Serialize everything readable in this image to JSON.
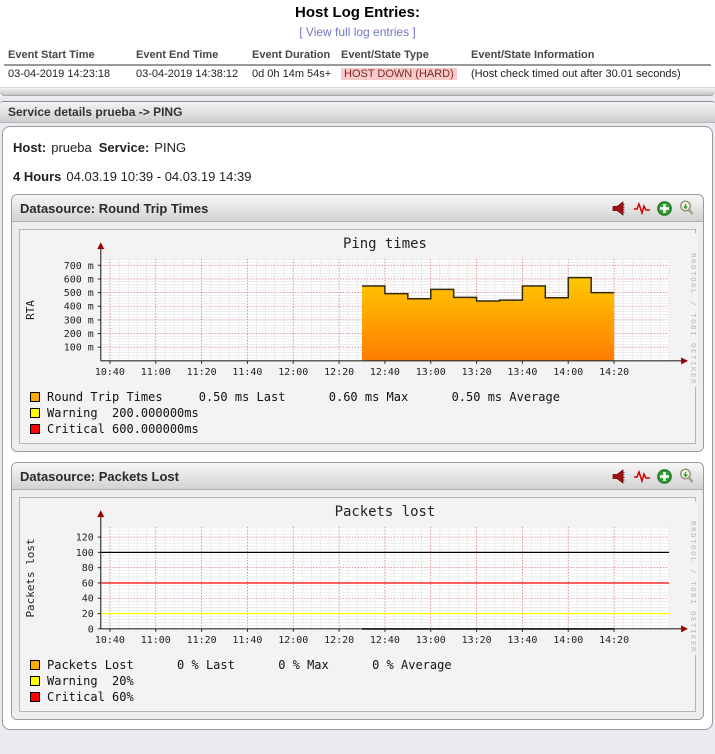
{
  "header": {
    "title": "Host Log Entries:",
    "link_label": "[ View full log entries ]"
  },
  "log_table": {
    "headers": [
      "Event Start Time",
      "Event End Time",
      "Event Duration",
      "Event/State Type",
      "Event/State Information"
    ],
    "row": {
      "start_time": "03-04-2019 14:23:18",
      "end_time": "03-04-2019 14:38:12",
      "duration": "0d 0h 14m 54s+",
      "state_type": "HOST DOWN (HARD)",
      "state_info": "(Host check timed out after 30.01 seconds)"
    }
  },
  "breadcrumb": {
    "text": "Service details prueba -> PING"
  },
  "service_details": {
    "host_label": "Host:",
    "host_value": "prueba",
    "service_label": "Service:",
    "service_value": "PING"
  },
  "time_range": {
    "label": "4 Hours",
    "value": "04.03.19 10:39 - 04.03.19 14:39"
  },
  "panels": [
    {
      "title": "Datasource: Round Trip Times",
      "icons": [
        "megaphone-icon",
        "heartbeat-icon",
        "zoom-in-plus-icon",
        "magnifier-icon"
      ]
    },
    {
      "title": "Datasource: Packets Lost",
      "icons": [
        "megaphone-icon",
        "heartbeat-icon",
        "zoom-in-plus-icon",
        "magnifier-icon"
      ]
    }
  ],
  "colors": {
    "link": "#7277c2",
    "state_down_bg": "#f8c9c9",
    "state_down_text": "#7a2a2a",
    "area_top": "#ffc800",
    "area_bottom": "#ff7d00",
    "warning": "#ffff00",
    "critical": "#ff0000"
  },
  "chart_data": [
    {
      "type": "area",
      "title": "Ping times",
      "ylabel": "RTA",
      "watermark": "RRDTOOL / TOBI OETIKER",
      "x_domain": [
        "10:36",
        "14:44"
      ],
      "x_ticks": [
        "10:40",
        "11:00",
        "11:20",
        "11:40",
        "12:00",
        "12:20",
        "12:40",
        "13:00",
        "13:20",
        "13:40",
        "14:00",
        "14:20"
      ],
      "x_minor_minutes": 4,
      "y_ticks": [
        {
          "v": 100,
          "label": "100 m"
        },
        {
          "v": 200,
          "label": "200 m"
        },
        {
          "v": 300,
          "label": "300 m"
        },
        {
          "v": 400,
          "label": "400 m"
        },
        {
          "v": 500,
          "label": "500 m"
        },
        {
          "v": 600,
          "label": "600 m"
        },
        {
          "v": 700,
          "label": "700 m"
        }
      ],
      "y_minor": 20,
      "ylim": [
        0,
        745
      ],
      "grid": true,
      "series": [
        {
          "name": "Round Trip Times",
          "style": "gradient-area-step",
          "color_top": "#ffc800",
          "color_bottom": "#ff7d00",
          "outline": "#32280a",
          "unit": "ms (milli)",
          "steps": [
            [
              "12:30",
              548
            ],
            [
              "12:40",
              492
            ],
            [
              "12:50",
              455
            ],
            [
              "13:00",
              524
            ],
            [
              "13:10",
              465
            ],
            [
              "13:20",
              438
            ],
            [
              "13:30",
              445
            ],
            [
              "13:40",
              548
            ],
            [
              "13:50",
              462
            ],
            [
              "14:00",
              610
            ],
            [
              "14:10",
              500
            ]
          ],
          "end": "14:20",
          "last": "0.50 ms",
          "max": "0.60 ms",
          "average": "0.50 ms"
        }
      ],
      "rules": [],
      "warning_threshold": "200.000000ms",
      "critical_threshold": "600.000000ms",
      "legend": [
        {
          "color": "#fca902",
          "text": "Round Trip Times     0.50 ms Last      0.60 ms Max      0.50 ms Average"
        },
        {
          "color": "#ffff00",
          "text": "Warning  200.000000ms"
        },
        {
          "color": "#ff0000",
          "text": "Critical 600.000000ms"
        }
      ]
    },
    {
      "type": "line",
      "title": "Packets lost",
      "ylabel": "Packets lost",
      "watermark": "RRDTOOL / TOBI OETIKER",
      "x_domain": [
        "10:36",
        "14:44"
      ],
      "x_ticks": [
        "10:40",
        "11:00",
        "11:20",
        "11:40",
        "12:00",
        "12:20",
        "12:40",
        "13:00",
        "13:20",
        "13:40",
        "14:00",
        "14:20"
      ],
      "x_minor_minutes": 4,
      "y_ticks": [
        {
          "v": 0,
          "label": "0"
        },
        {
          "v": 20,
          "label": "20"
        },
        {
          "v": 40,
          "label": "40"
        },
        {
          "v": 60,
          "label": "60"
        },
        {
          "v": 80,
          "label": "80"
        },
        {
          "v": 100,
          "label": "100"
        },
        {
          "v": 120,
          "label": "120"
        }
      ],
      "y_minor": 4,
      "ylim": [
        0,
        133
      ],
      "grid": true,
      "series": [
        {
          "name": "Packets Lost",
          "style": "line",
          "color": "#000000",
          "unit": "%",
          "steps": [
            [
              "12:30",
              0
            ]
          ],
          "end": "14:20",
          "last": "0 %",
          "max": "0 %",
          "average": "0 %"
        }
      ],
      "rules": [
        {
          "value": 100,
          "color": "#000000",
          "name": "100-percent-line"
        },
        {
          "value": 60,
          "color": "#ff0000",
          "name": "critical-line"
        },
        {
          "value": 20,
          "color": "#ffff00",
          "name": "warning-line"
        }
      ],
      "warning_threshold": "20%",
      "critical_threshold": "60%",
      "legend": [
        {
          "color": "#fca902",
          "text": "Packets Lost      0 % Last      0 % Max      0 % Average"
        },
        {
          "color": "#ffff00",
          "text": "Warning  20%"
        },
        {
          "color": "#ff0000",
          "text": "Critical 60%"
        }
      ]
    }
  ]
}
